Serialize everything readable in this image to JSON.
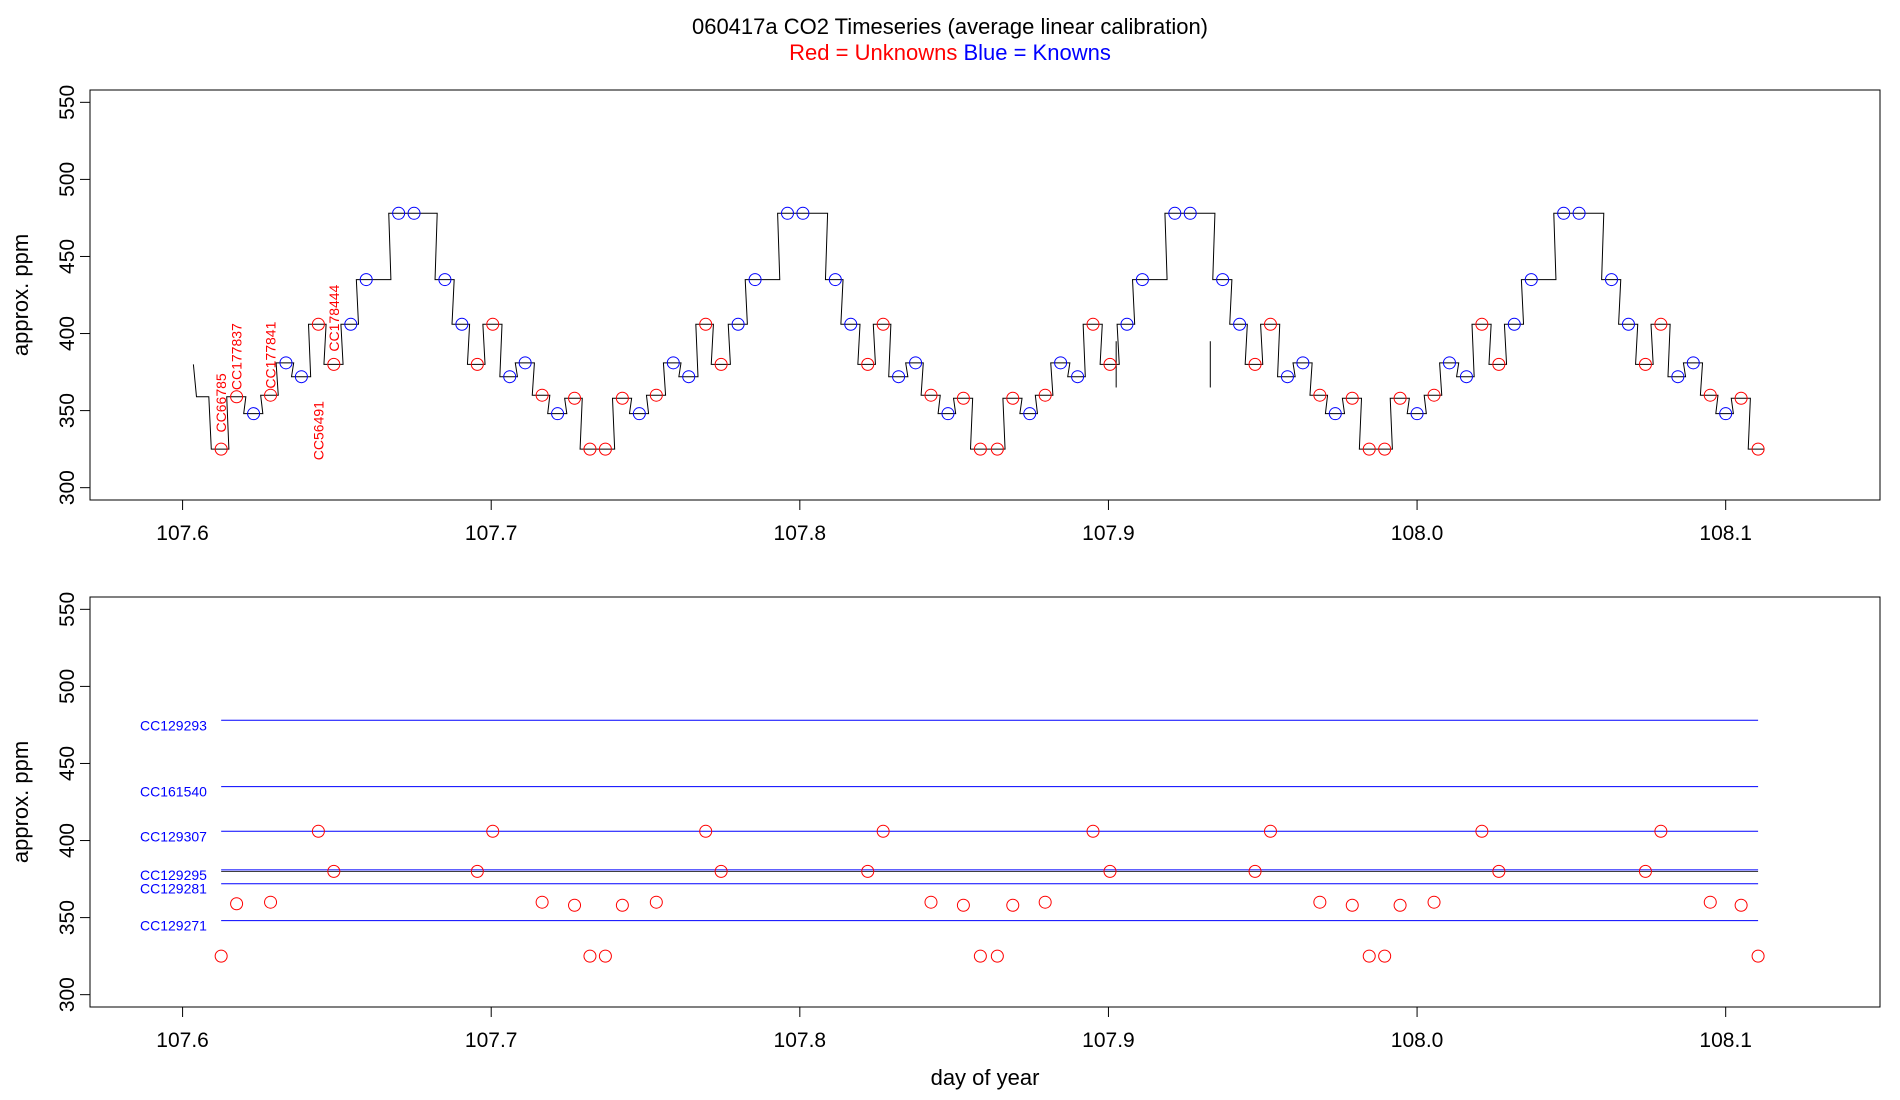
{
  "title": "060417a   CO2 Timeseries (average linear calibration)",
  "subtitle": {
    "red_text": "Red = Unknowns",
    "blue_text": "Blue = Knowns",
    "red_color": "#ff0000",
    "blue_color": "#0000ff"
  },
  "chart_data": [
    {
      "type": "line",
      "panel": "top",
      "xlabel": "",
      "ylabel": "approx. ppm",
      "xlim": [
        107.57,
        108.15
      ],
      "ylim": [
        292,
        558
      ],
      "xticks": [
        "107.6",
        "107.7",
        "107.8",
        "107.9",
        "108.0",
        "108.1"
      ],
      "xtick_values": [
        107.6,
        107.7,
        107.8,
        107.9,
        108.0,
        108.1
      ],
      "yticks": [
        "300",
        "350",
        "400",
        "450",
        "500",
        "550"
      ],
      "ytick_values": [
        300,
        350,
        400,
        450,
        500,
        550
      ],
      "grid": false,
      "line_color": "#000000",
      "unknown_color": "#ff0000",
      "known_color": "#0000ff",
      "unknown_points": {
        "x": [
          107.6125,
          107.6175,
          107.6285,
          107.644,
          107.649,
          107.6955,
          107.7005,
          107.7165,
          107.727,
          107.732,
          107.737,
          107.7425,
          107.7535,
          107.7695,
          107.7745,
          107.822,
          107.827,
          107.8425,
          107.853,
          107.8585,
          107.864,
          107.869,
          107.8795,
          107.895,
          107.9005,
          107.9475,
          107.9525,
          107.9685,
          107.979,
          107.9845,
          107.9895,
          107.9945,
          108.0055,
          108.021,
          108.0265,
          108.074,
          108.079,
          108.095,
          108.105,
          108.1105
        ],
        "y": [
          325,
          359,
          360,
          406,
          380,
          380,
          406,
          360,
          358,
          325,
          325,
          358,
          360,
          406,
          380,
          380,
          406,
          360,
          358,
          325,
          325,
          358,
          360,
          406,
          380,
          380,
          406,
          360,
          358,
          325,
          325,
          358,
          360,
          406,
          380,
          380,
          406,
          360,
          358,
          325
        ]
      },
      "known_points": {
        "x": [
          107.623,
          107.6335,
          107.6385,
          107.6545,
          107.6595,
          107.67,
          107.675,
          107.685,
          107.6905,
          107.706,
          107.711,
          107.7215,
          107.748,
          107.759,
          107.764,
          107.78,
          107.7855,
          107.796,
          107.801,
          107.8115,
          107.8165,
          107.832,
          107.8375,
          107.848,
          107.8745,
          107.8845,
          107.89,
          107.906,
          107.911,
          107.9215,
          107.9265,
          107.937,
          107.9425,
          107.958,
          107.963,
          107.9735,
          108.0,
          108.0105,
          108.016,
          108.0315,
          108.037,
          108.0475,
          108.0525,
          108.063,
          108.0685,
          108.0845,
          108.0895,
          108.1
        ],
        "y": [
          348,
          381,
          372,
          406,
          435,
          478,
          478,
          435,
          406,
          372,
          381,
          348,
          348,
          381,
          372,
          406,
          435,
          478,
          478,
          435,
          406,
          372,
          381,
          348,
          348,
          381,
          372,
          406,
          435,
          478,
          478,
          435,
          406,
          372,
          381,
          348,
          348,
          381,
          372,
          406,
          435,
          478,
          478,
          435,
          406,
          372,
          381,
          348
        ]
      },
      "sample_labels": [
        {
          "text": "CC66785",
          "x": 107.6125,
          "y": 355
        },
        {
          "text": "CC177837",
          "x": 107.6175,
          "y": 385
        },
        {
          "text": "CC177841",
          "x": 107.6285,
          "y": 386
        },
        {
          "text": "CC56491",
          "x": 107.644,
          "y": 337
        },
        {
          "text": "CC178444",
          "x": 107.649,
          "y": 410
        }
      ]
    },
    {
      "type": "scatter",
      "panel": "bottom",
      "xlabel": "day of year",
      "ylabel": "approx. ppm",
      "xlim": [
        107.57,
        108.15
      ],
      "ylim": [
        292,
        558
      ],
      "xticks": [
        "107.6",
        "107.7",
        "107.8",
        "107.9",
        "108.0",
        "108.1"
      ],
      "xtick_values": [
        107.6,
        107.7,
        107.8,
        107.9,
        108.0,
        108.1
      ],
      "yticks": [
        "300",
        "350",
        "400",
        "450",
        "500",
        "550"
      ],
      "ytick_values": [
        300,
        350,
        400,
        450,
        500,
        550
      ],
      "grid": false,
      "reference_lines": [
        {
          "name": "CC129293",
          "y": 478,
          "color": "#0000ff"
        },
        {
          "name": "CC161540",
          "y": 435,
          "color": "#0000ff"
        },
        {
          "name": "CC129307",
          "y": 406,
          "color": "#0000ff"
        },
        {
          "name": "CC129295",
          "y": 381,
          "color": "#0000ff"
        },
        {
          "name": "CC129281",
          "y": 372,
          "color": "#0000ff"
        },
        {
          "name": "CC129271",
          "y": 348,
          "color": "#0000ff"
        }
      ],
      "reference_x_range": [
        107.6125,
        108.1105
      ],
      "extra_line": {
        "y": 380,
        "color": "#000000"
      },
      "unknown_color": "#ff0000",
      "unknown_points": {
        "x": [
          107.6125,
          107.6175,
          107.6285,
          107.644,
          107.649,
          107.6955,
          107.7005,
          107.7165,
          107.727,
          107.732,
          107.737,
          107.7425,
          107.7535,
          107.7695,
          107.7745,
          107.822,
          107.827,
          107.8425,
          107.853,
          107.8585,
          107.864,
          107.869,
          107.8795,
          107.895,
          107.9005,
          107.9475,
          107.9525,
          107.9685,
          107.979,
          107.9845,
          107.9895,
          107.9945,
          108.0055,
          108.021,
          108.0265,
          108.074,
          108.079,
          108.095,
          108.105,
          108.1105
        ],
        "y": [
          325,
          359,
          360,
          406,
          380,
          380,
          406,
          360,
          358,
          325,
          325,
          358,
          360,
          406,
          380,
          380,
          406,
          360,
          358,
          325,
          325,
          358,
          360,
          406,
          380,
          380,
          406,
          360,
          358,
          325,
          325,
          358,
          360,
          406,
          380,
          380,
          406,
          360,
          358,
          325
        ]
      }
    }
  ]
}
